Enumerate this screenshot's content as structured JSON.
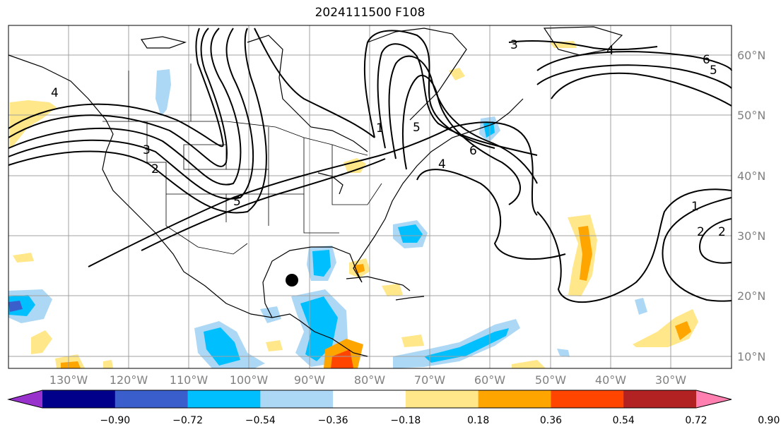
{
  "title": "2024111500 F108",
  "map": {
    "projection": "cylindrical",
    "lon_range": [
      -140,
      -20
    ],
    "lat_range": [
      8,
      65
    ],
    "center_marker": {
      "lon": -93.5,
      "lat": 22.5
    }
  },
  "grid": {
    "lon_labels": [
      "130°W",
      "120°W",
      "110°W",
      "100°W",
      "90°W",
      "80°W",
      "70°W",
      "60°W",
      "50°W",
      "40°W",
      "30°W"
    ],
    "lat_labels": [
      "60°N",
      "50°N",
      "40°N",
      "30°N",
      "20°N",
      "10°N"
    ]
  },
  "contour_labels": [
    "3",
    "4",
    "6",
    "5",
    "1",
    "5",
    "6",
    "4",
    "4",
    "3",
    "2",
    "5",
    "1",
    "2",
    "2"
  ],
  "colorbar": {
    "tick_labels": [
      "−0.90",
      "−0.72",
      "−0.54",
      "−0.36",
      "−0.18",
      "0.18",
      "0.36",
      "0.54",
      "0.72",
      "0.90"
    ],
    "colors": [
      "#9932cc",
      "#00008b",
      "#3a5fcd",
      "#00bfff",
      "#add8f5",
      "#ffffff",
      "#ffe78a",
      "#ffa500",
      "#ff4500",
      "#b22222",
      "#ff7fb0"
    ]
  },
  "colors": {
    "land_line": "#000000",
    "contour": "#000000",
    "grid": "#a0a0a0"
  }
}
